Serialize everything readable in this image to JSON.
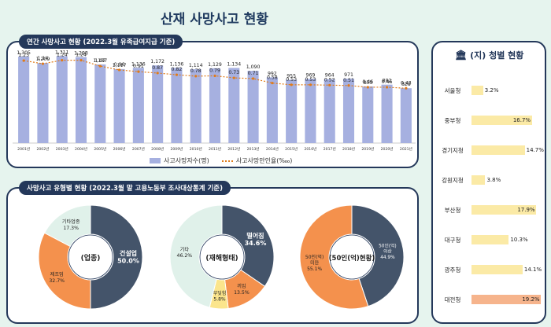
{
  "title": "산재 사망사고 현황",
  "panel1_label": "연간 사망사고 현황 (2022.3월 유족급여지급 기준)",
  "panel2_label": "사망사고 유형별 현황 (2022.3월 말 고용노동부 조사대상통계 기준)",
  "region_title": "(지) 청별 현황",
  "chart_data": [
    {
      "type": "bar",
      "title": "연간 사망사고 현황 (2022.3월 유족급여지급 기준)",
      "categories": [
        "2001년",
        "2002년",
        "2003년",
        "2004년",
        "2005년",
        "2006년",
        "2007년",
        "2008년",
        "2009년",
        "2010년",
        "2011년",
        "2012년",
        "2013년",
        "2014년",
        "2015년",
        "2016년",
        "2017년",
        "2018년",
        "2019년",
        "2020년",
        "2021년"
      ],
      "series": [
        {
          "name": "사고사망자수(명)",
          "type": "bar",
          "color": "#a6b0e0",
          "values": [
            1305,
            1209,
            1311,
            1298,
            1187,
            1117,
            1136,
            1172,
            1136,
            1114,
            1129,
            1134,
            1090,
            992,
            955,
            969,
            964,
            971,
            855,
            882,
            828
          ],
          "labels": [
            "1,305",
            "1,209",
            "1,311",
            "1,298",
            "1,187",
            "1,117",
            "1,136",
            "1,172",
            "1,136",
            "1,114",
            "1,129",
            "1,134",
            "1,090",
            "992",
            "955",
            "969",
            "964",
            "971",
            "855",
            "882",
            "828"
          ]
        },
        {
          "name": "사고사망만인율(‱)",
          "type": "line",
          "color": "#e07b1a",
          "values": [
            1.23,
            1.14,
            1.24,
            1.24,
            1.07,
            0.96,
            0.91,
            0.87,
            0.82,
            0.78,
            0.79,
            0.73,
            0.71,
            0.58,
            0.53,
            0.53,
            0.52,
            0.51,
            0.46,
            0.46,
            0.43
          ],
          "labels": [
            "1.23",
            "1.14",
            "1.24",
            "1.24",
            "1.07",
            "0.96",
            "0.91",
            "0.87",
            "0.82",
            "0.78",
            "0.79",
            "0.73",
            "0.71",
            "0.58",
            "0.53",
            "0.53",
            "0.52",
            "0.51",
            "0.46",
            "0.46",
            "0.43"
          ]
        }
      ]
    },
    {
      "type": "pie",
      "title": "(업종)",
      "slices": [
        {
          "label": "건설업",
          "value": 50.0,
          "pct": "50.0%",
          "color": "#44546a",
          "text_color": "#ffffff"
        },
        {
          "label": "제조업",
          "value": 32.7,
          "pct": "32.7%",
          "color": "#f4914d",
          "text_color": "#222222"
        },
        {
          "label": "기타업종",
          "value": 17.3,
          "pct": "17.3%",
          "color": "#e0f1ea",
          "text_color": "#222222"
        }
      ]
    },
    {
      "type": "pie",
      "title": "(재해형태)",
      "slices": [
        {
          "label": "떨어짐",
          "value": 34.6,
          "pct": "34.6%",
          "color": "#44546a",
          "text_color": "#ffffff"
        },
        {
          "label": "끼임",
          "value": 13.5,
          "pct": "13.5%",
          "color": "#f4914d",
          "text_color": "#222222"
        },
        {
          "label": "부딪힘",
          "value": 5.8,
          "pct": "5.8%",
          "color": "#fbe58c",
          "text_color": "#222222"
        },
        {
          "label": "기타",
          "value": 46.2,
          "pct": "46.2%",
          "color": "#e0f1ea",
          "text_color": "#222222"
        }
      ]
    },
    {
      "type": "pie",
      "title": "(50인(억)현황)",
      "slices": [
        {
          "label": "50인(억) 이상",
          "value": 44.9,
          "pct": "44.9%",
          "color": "#44546a",
          "text_color": "#ffffff"
        },
        {
          "label": "50인(억) 미만",
          "value": 55.1,
          "pct": "55.1%",
          "color": "#f4914d",
          "text_color": "#222222"
        }
      ]
    },
    {
      "type": "bar",
      "title": "(지) 청별 현황",
      "categories": [
        "서울청",
        "중부청",
        "경기지청",
        "강원지청",
        "부산청",
        "대구청",
        "광주청",
        "대전청"
      ],
      "values": [
        3.2,
        16.7,
        14.7,
        3.8,
        17.9,
        10.3,
        14.1,
        19.2
      ],
      "labels": [
        "3.2%",
        "16.7%",
        "14.7%",
        "3.8%",
        "17.9%",
        "10.3%",
        "14.1%",
        "19.2%"
      ],
      "bar_color": "#fbeaa6",
      "highlight_color": "#f6b48c"
    }
  ]
}
